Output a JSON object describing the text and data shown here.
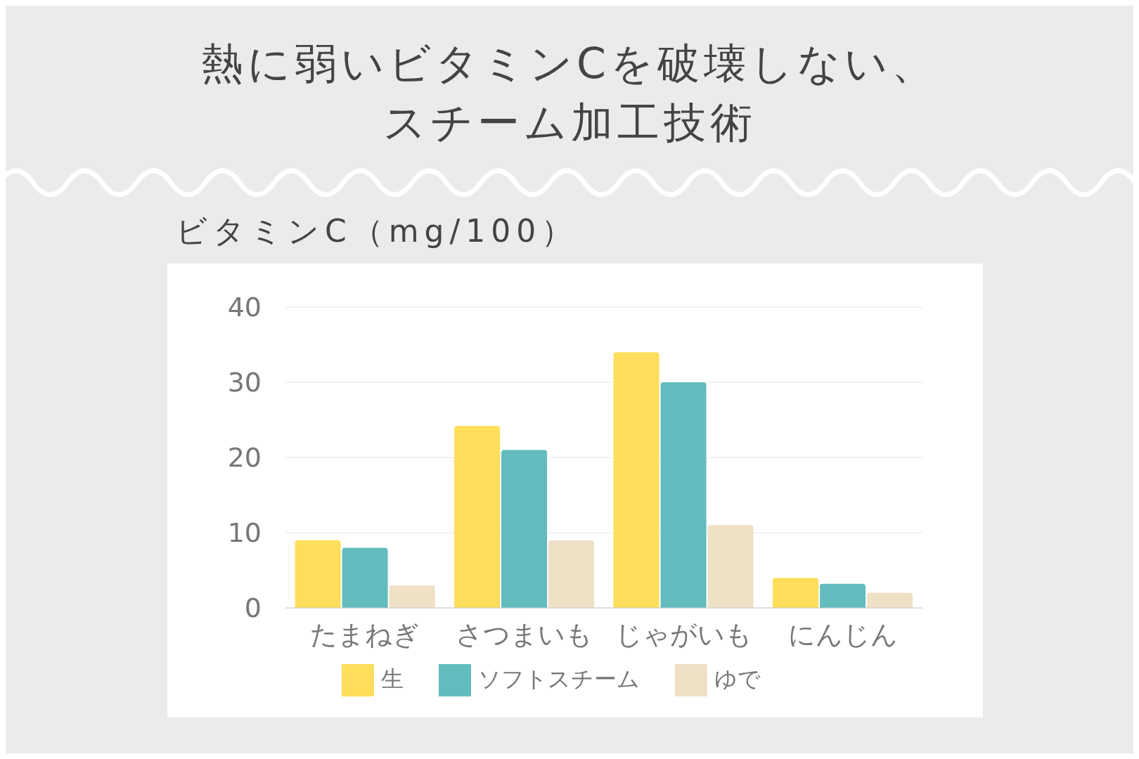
{
  "chart_data": {
    "type": "bar",
    "title": "熱に弱いビタミンCを破壊しない、スチーム加工技術",
    "ylabel": "ビタミンC（mg/100）",
    "categories": [
      "たまねぎ",
      "さつまいも",
      "じゃがいも",
      "にんじん"
    ],
    "series": [
      {
        "name": "生",
        "color": "#fede5a",
        "values": [
          9,
          24.2,
          34,
          4
        ]
      },
      {
        "name": "ソフトスチーム",
        "color": "#62bcbe",
        "values": [
          8,
          21,
          30,
          3.2
        ]
      },
      {
        "name": "ゆで",
        "color": "#efe1c6",
        "values": [
          3,
          9,
          11,
          2
        ]
      }
    ],
    "ylim": [
      0,
      40
    ],
    "yticks": [
      0,
      10,
      20,
      30,
      40
    ],
    "grid": "y",
    "legend": "bottom"
  }
}
